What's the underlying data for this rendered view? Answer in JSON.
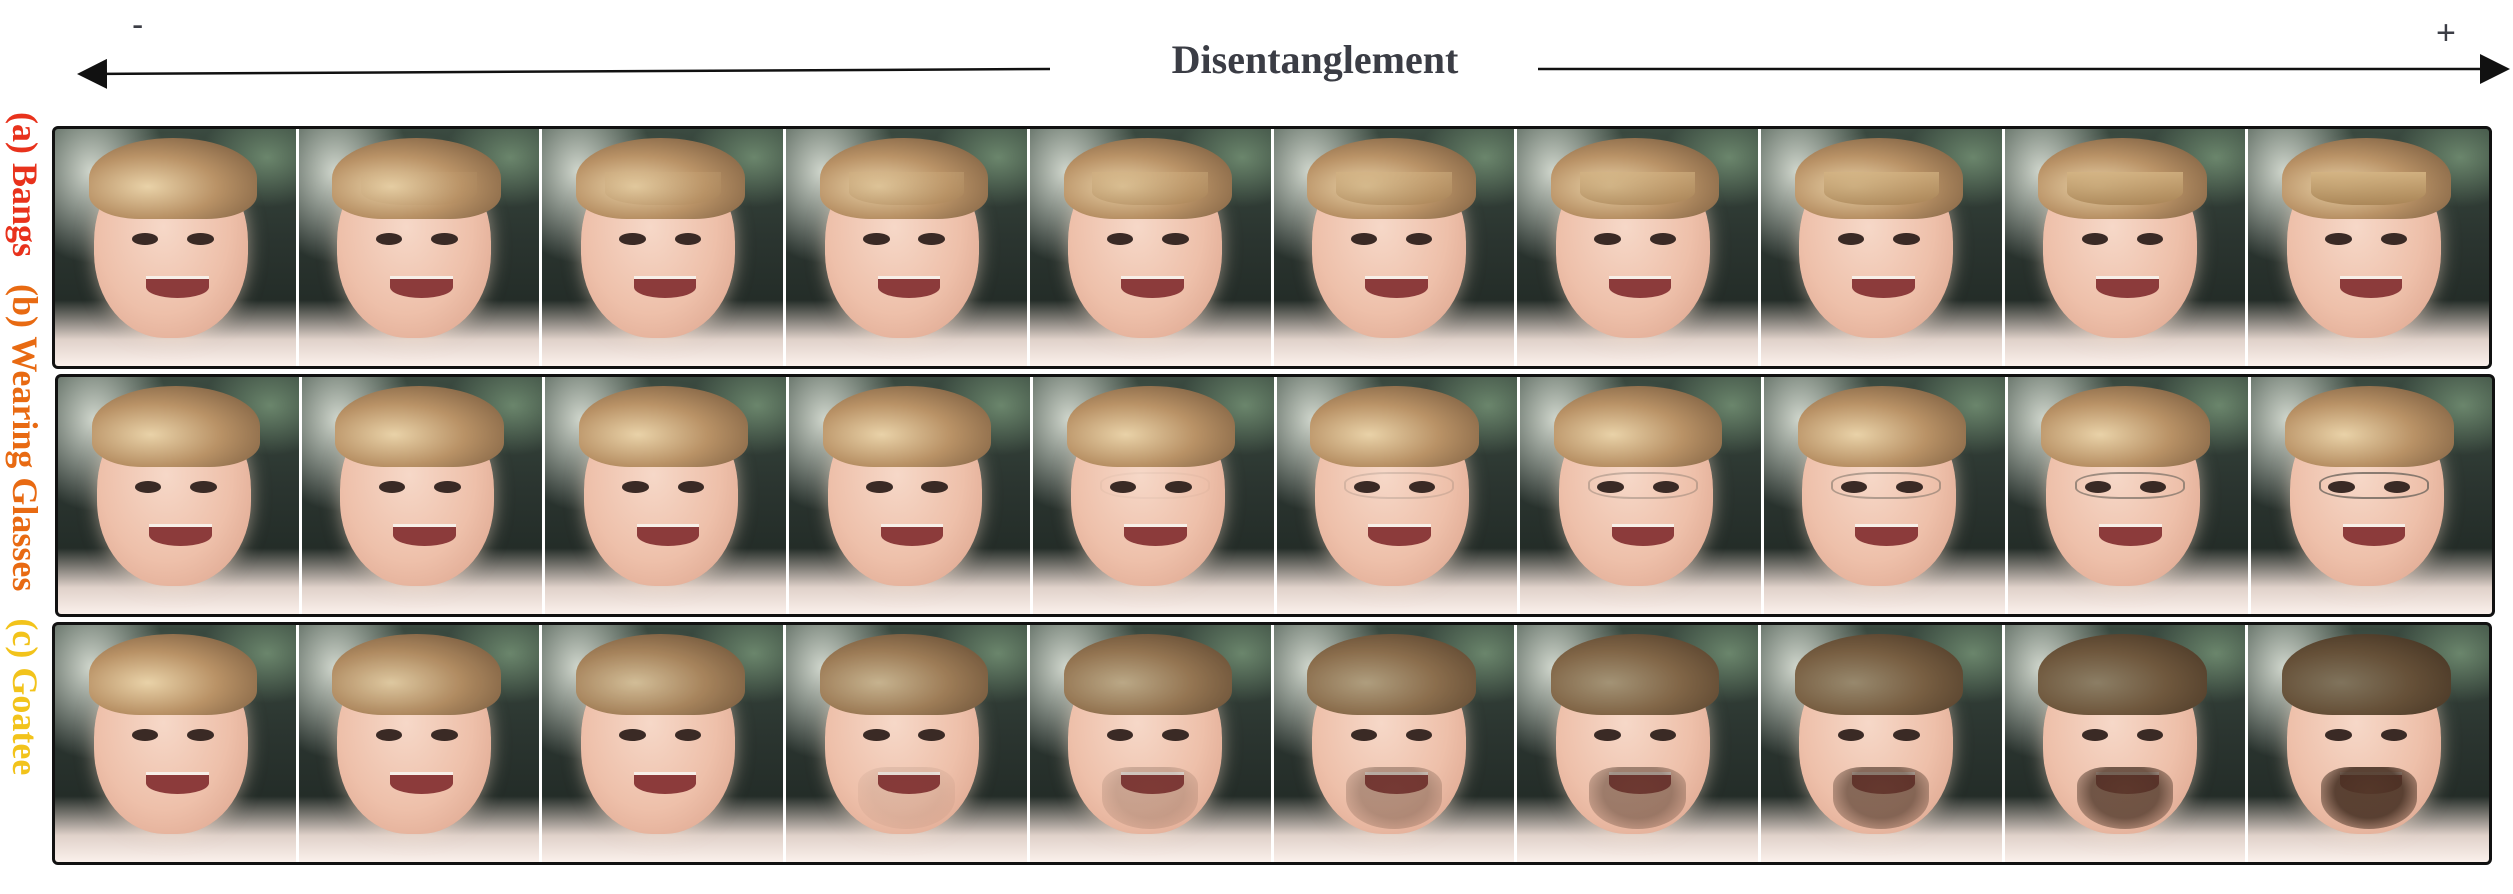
{
  "header": {
    "title": "Disentanglement",
    "minus_label": "-",
    "plus_label": "+"
  },
  "rows": [
    {
      "label": "(a) Bangs",
      "color": "#e8321c",
      "attribute": "bangs"
    },
    {
      "label": "(b) Wearing Glasses",
      "color": "#e86a12",
      "attribute": "glasses"
    },
    {
      "label": "(c) Goatee",
      "color": "#f2c31b",
      "attribute": "goatee"
    }
  ],
  "columns_per_row": 10,
  "colors": {
    "title_text": "#3b3d45",
    "axis_line": "#111111",
    "frame": "#111111"
  }
}
